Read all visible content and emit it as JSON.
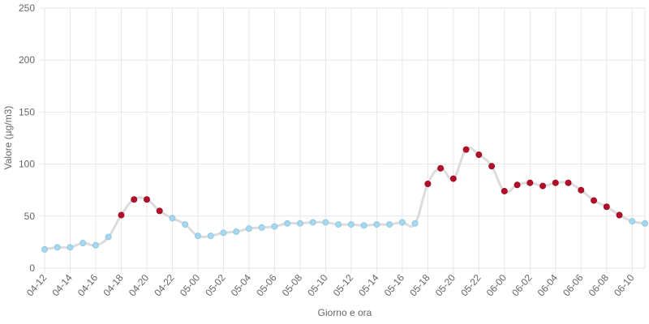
{
  "chart_data": {
    "type": "line",
    "y_label": "Valore (µg/m3)",
    "x_label": "Giorno e ora",
    "categories": [
      "04-12",
      null,
      "04-14",
      null,
      "04-16",
      null,
      "04-18",
      null,
      "04-20",
      null,
      "04-22",
      null,
      "05-00",
      null,
      "05-02",
      null,
      "05-04",
      null,
      "05-06",
      null,
      "05-08",
      null,
      "05-10",
      null,
      "05-12",
      null,
      "05-14",
      null,
      "05-16",
      null,
      "05-18",
      null,
      "05-20",
      null,
      "05-22",
      null,
      "06-00",
      null,
      "06-02",
      null,
      "06-04",
      null,
      "06-06",
      null,
      "06-08",
      null,
      "06-10",
      null
    ],
    "series": [
      {
        "color": "#dcdcdc",
        "values": [
          18,
          20,
          20,
          24,
          22,
          30,
          51,
          66,
          66,
          55,
          48,
          42,
          31,
          31,
          34,
          35,
          38,
          39,
          40,
          43,
          43,
          44,
          44,
          42,
          42,
          41,
          42,
          42,
          44,
          43,
          81,
          96,
          86,
          114,
          109,
          98,
          74,
          80,
          82,
          79,
          82,
          82,
          75,
          65,
          59,
          51,
          45,
          43
        ],
        "point_colors": [
          "#a8d8ee",
          "#a8d8ee",
          "#a8d8ee",
          "#a8d8ee",
          "#a8d8ee",
          "#a8d8ee",
          "#b0102a",
          "#b0102a",
          "#b0102a",
          "#b0102a",
          "#a8d8ee",
          "#a8d8ee",
          "#a8d8ee",
          "#a8d8ee",
          "#a8d8ee",
          "#a8d8ee",
          "#a8d8ee",
          "#a8d8ee",
          "#a8d8ee",
          "#a8d8ee",
          "#a8d8ee",
          "#a8d8ee",
          "#a8d8ee",
          "#a8d8ee",
          "#a8d8ee",
          "#a8d8ee",
          "#a8d8ee",
          "#a8d8ee",
          "#a8d8ee",
          "#a8d8ee",
          "#b0102a",
          "#b0102a",
          "#b0102a",
          "#b0102a",
          "#b0102a",
          "#b0102a",
          "#b0102a",
          "#b0102a",
          "#b0102a",
          "#b0102a",
          "#b0102a",
          "#b0102a",
          "#b0102a",
          "#b0102a",
          "#b0102a",
          "#b0102a",
          "#a8d8ee",
          "#a8d8ee"
        ]
      }
    ],
    "ylim": [
      0,
      250
    ],
    "yticks": [
      0,
      50,
      100,
      150,
      200,
      250
    ],
    "grid": true
  }
}
